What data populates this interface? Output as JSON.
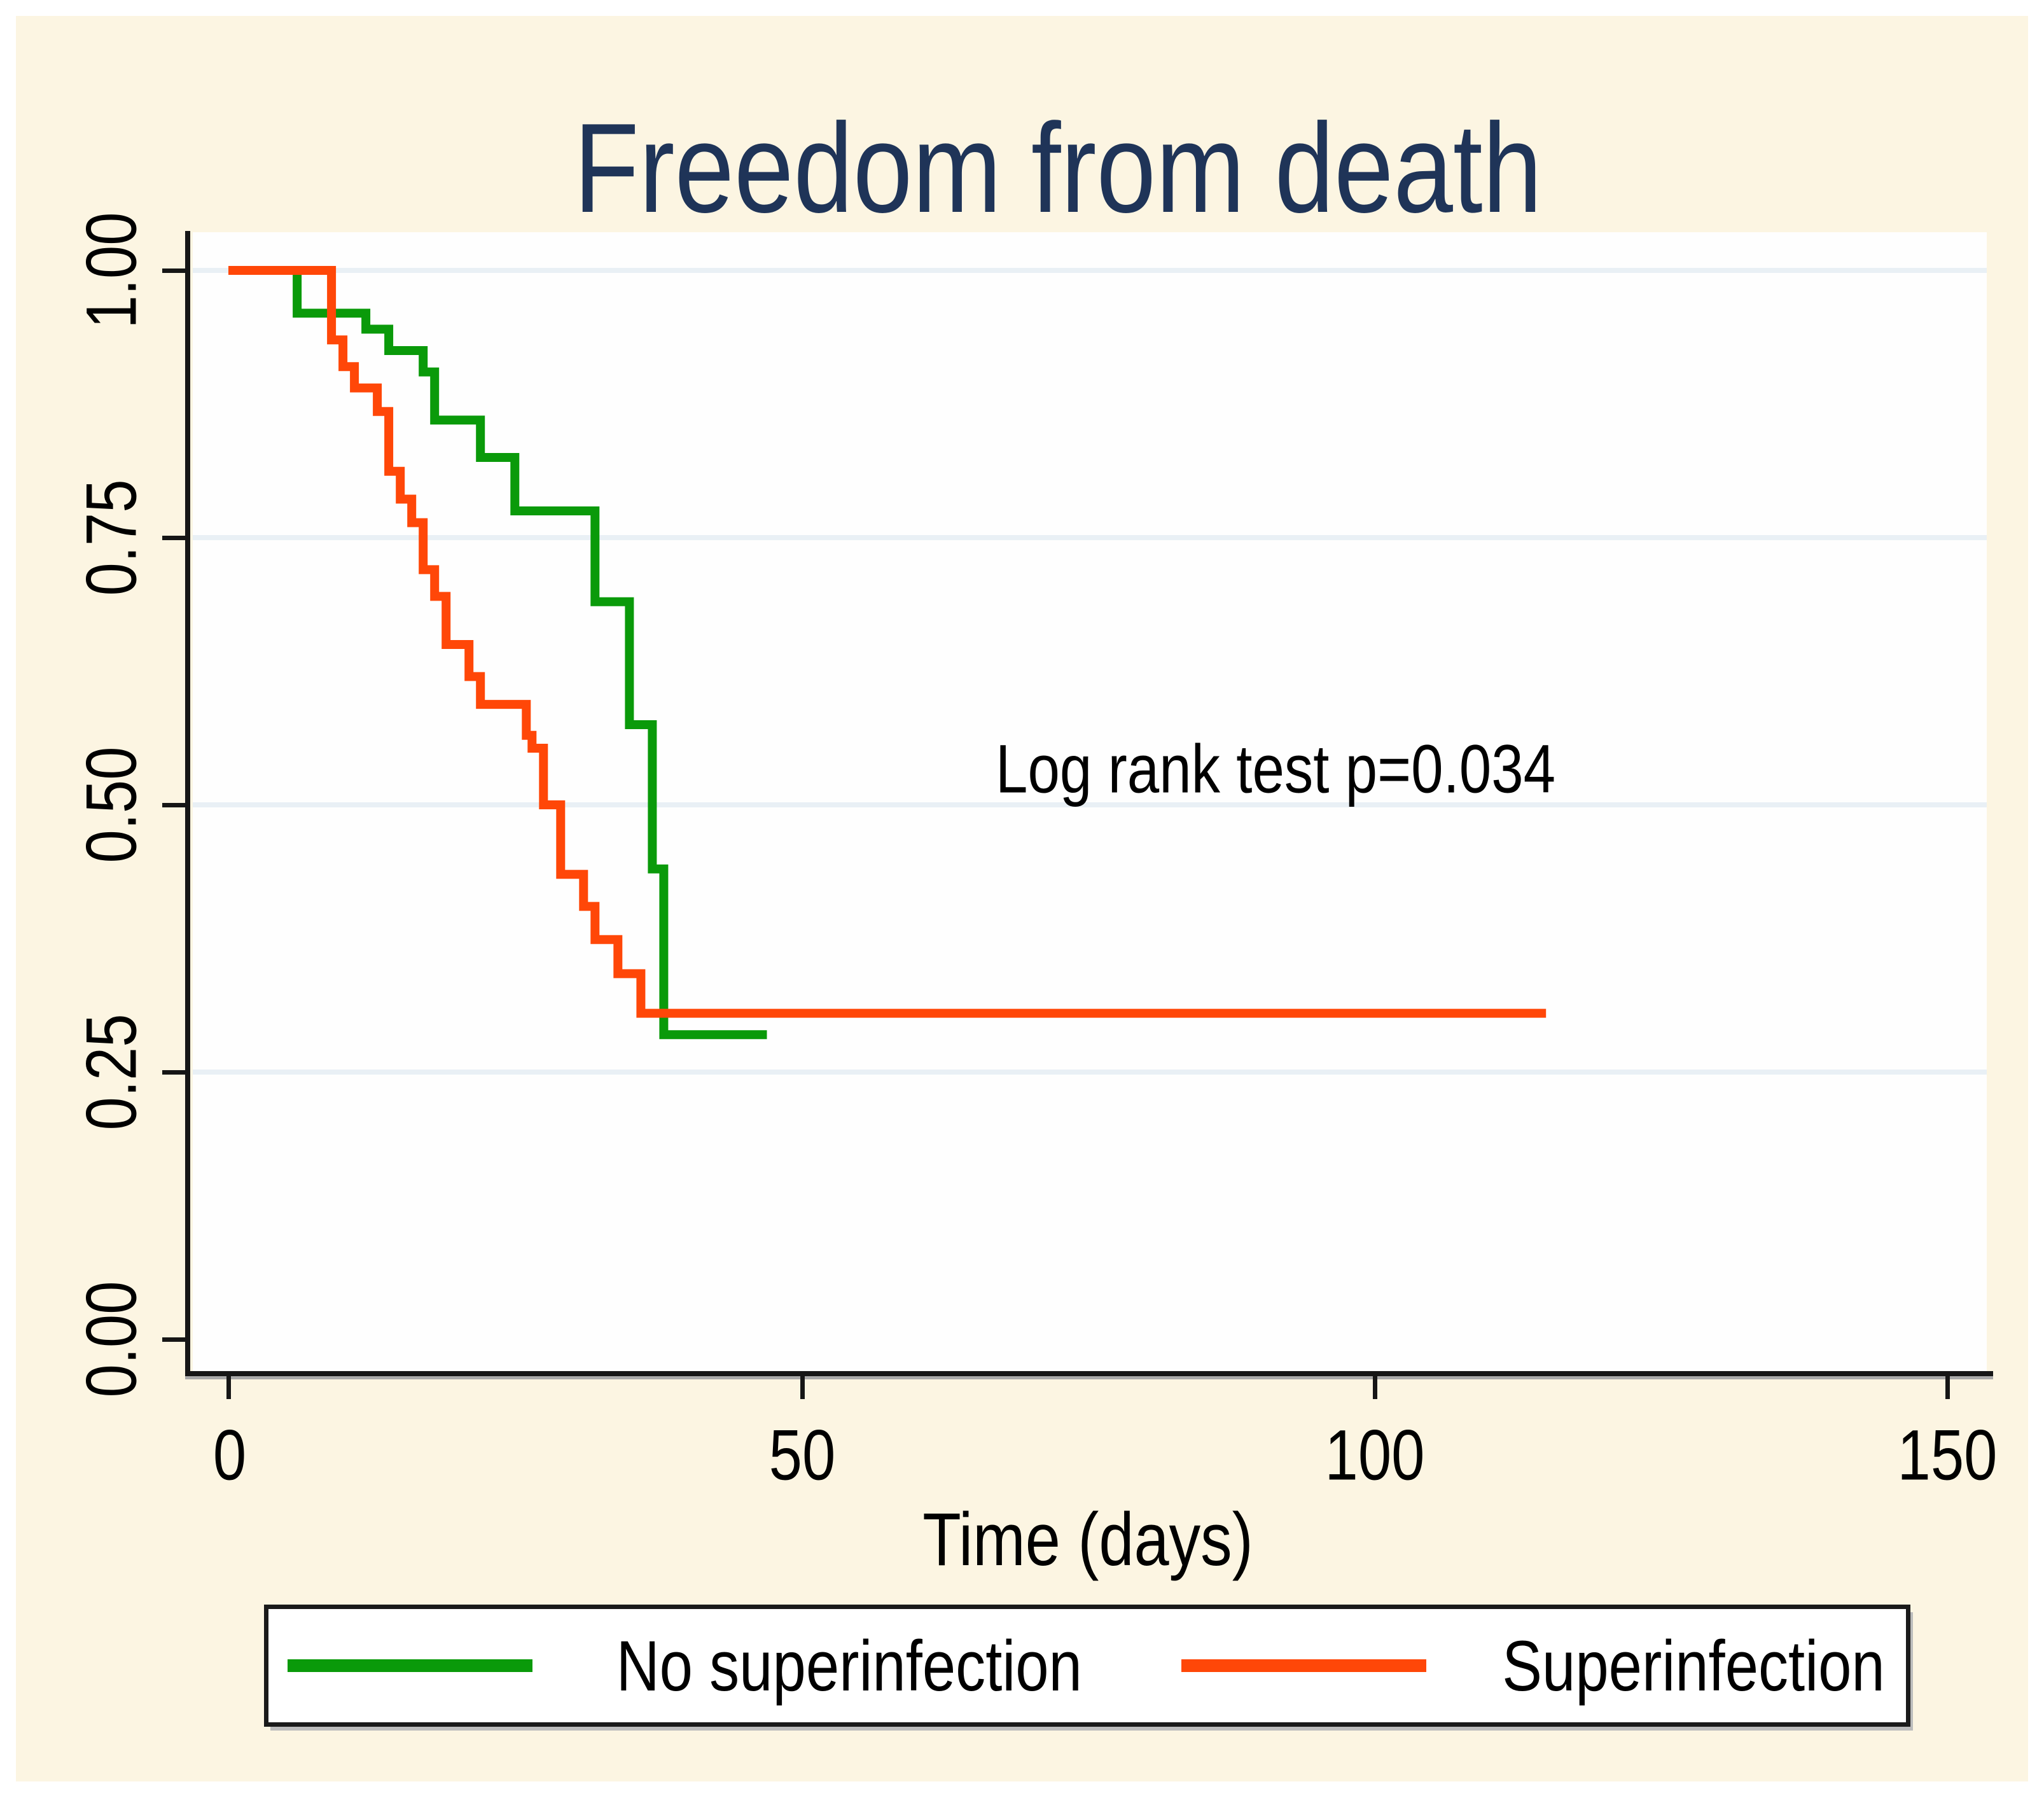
{
  "title": {
    "text": "Freedom from death"
  },
  "annotation": {
    "text": "Log rank test p=0.034"
  },
  "axes": {
    "x": {
      "label": "Time (days)",
      "ticks": [
        "0",
        "50",
        "100",
        "150"
      ],
      "range": [
        0,
        150
      ]
    },
    "y": {
      "ticks": [
        "1.00",
        "0.75",
        "0.50",
        "0.25",
        "0.00"
      ],
      "range": [
        0.0,
        1.0
      ]
    }
  },
  "legend": {
    "items": [
      {
        "label": "No superinfection",
        "color": "#0a9a0a"
      },
      {
        "label": "Superinfection",
        "color": "#ff4708"
      }
    ]
  },
  "colors": {
    "page_background": "#ffffff",
    "panel_background": "#fcf5e2",
    "plot_background": "#fefefe",
    "gridline": "#e9f0f5",
    "axis": "#161616",
    "title_text": "#1f3458",
    "body_text": "#000000",
    "green_series": "#0a9a0a",
    "orange_series": "#ff4708"
  },
  "chart_data": {
    "type": "line",
    "subtype": "kaplan-meier-step",
    "title": "Freedom from death",
    "xlabel": "Time (days)",
    "ylabel": "",
    "xlim": [
      0,
      150
    ],
    "ylim": [
      0.0,
      1.0
    ],
    "x_ticks": [
      0,
      50,
      100,
      150
    ],
    "y_ticks": [
      1.0,
      0.75,
      0.5,
      0.25,
      0.0
    ],
    "grid": "horizontal",
    "legend_position": "bottom",
    "annotation": {
      "text": "Log rank test p=0.034",
      "x_day": 67,
      "y_value": 0.535
    },
    "series": [
      {
        "name": "No superinfection",
        "color": "#0a9a0a",
        "end_day": 47,
        "events": [
          [
            0,
            1.0
          ],
          [
            6,
            0.96
          ],
          [
            12,
            0.945
          ],
          [
            14,
            0.925
          ],
          [
            17,
            0.905
          ],
          [
            18,
            0.86
          ],
          [
            22,
            0.825
          ],
          [
            25,
            0.775
          ],
          [
            32,
            0.69
          ],
          [
            35,
            0.575
          ],
          [
            37,
            0.44
          ],
          [
            38,
            0.285
          ]
        ]
      },
      {
        "name": "Superinfection",
        "color": "#ff4708",
        "end_day": 115,
        "events": [
          [
            0,
            1.0
          ],
          [
            9,
            0.935
          ],
          [
            10,
            0.91
          ],
          [
            11,
            0.89
          ],
          [
            13,
            0.868
          ],
          [
            14,
            0.812
          ],
          [
            15,
            0.786
          ],
          [
            16,
            0.764
          ],
          [
            17,
            0.72
          ],
          [
            18,
            0.695
          ],
          [
            19,
            0.65
          ],
          [
            21,
            0.62
          ],
          [
            22,
            0.594
          ],
          [
            26,
            0.565
          ],
          [
            26.5,
            0.553
          ],
          [
            27.5,
            0.5
          ],
          [
            29,
            0.435
          ],
          [
            31,
            0.405
          ],
          [
            32,
            0.374
          ],
          [
            34,
            0.342
          ],
          [
            36,
            0.305
          ]
        ]
      }
    ]
  }
}
